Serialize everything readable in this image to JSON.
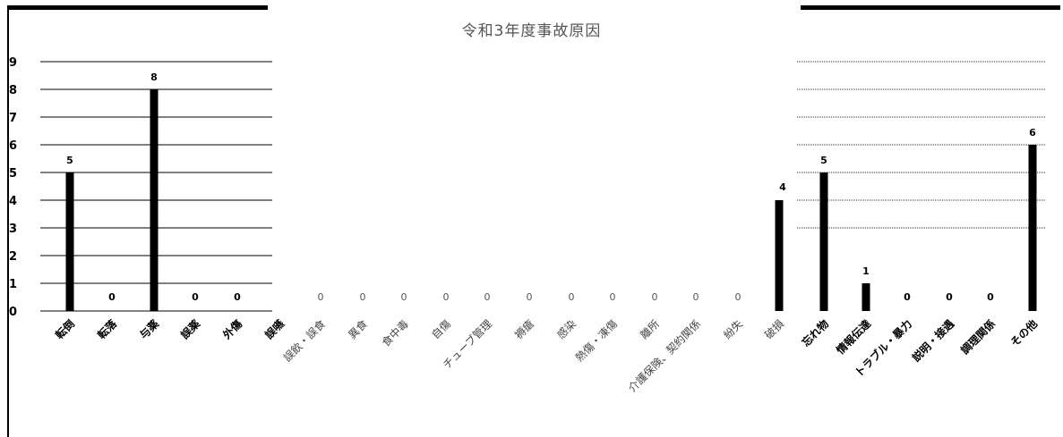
{
  "chart_data": {
    "type": "bar",
    "title": "令和3年度事故原因",
    "xlabel": "",
    "ylabel": "",
    "ylim": [
      0,
      9
    ],
    "yticks": [
      0,
      1,
      2,
      3,
      4,
      5,
      6,
      7,
      8,
      9
    ],
    "grid": true,
    "legend": "none",
    "categories": [
      "転倒",
      "転落",
      "与薬",
      "誤薬",
      "外傷",
      "誤嚥",
      "誤飲・誤食",
      "異食",
      "食中毒",
      "自傷",
      "チューブ管理",
      "褥瘡",
      "感染",
      "熱傷・凍傷",
      "離所",
      "介護保険、契約関係",
      "紛失",
      "破損",
      "忘れ物",
      "情報伝達",
      "トラブル・暴力",
      "説明・接遇",
      "調理関係",
      "その他"
    ],
    "values": [
      5,
      0,
      8,
      0,
      0,
      0,
      0,
      0,
      0,
      0,
      0,
      0,
      0,
      0,
      0,
      0,
      0,
      4,
      5,
      1,
      0,
      0,
      0,
      6
    ],
    "data_labels": [
      "5",
      "0",
      "8",
      "0",
      "0",
      "",
      "0",
      "0",
      "0",
      "0",
      "0",
      "0",
      "0",
      "0",
      "0",
      "0",
      "0",
      "4",
      "5",
      "1",
      "0",
      "0",
      "0",
      "6"
    ],
    "bar_color": "#000000"
  }
}
